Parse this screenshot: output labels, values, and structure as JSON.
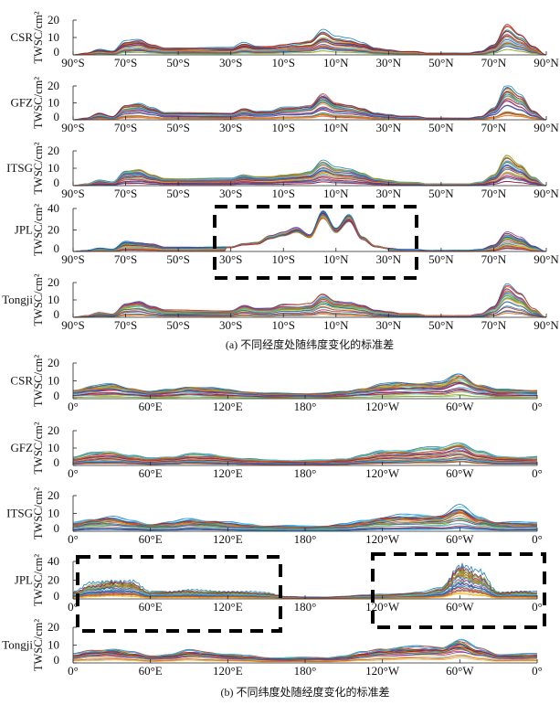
{
  "chart_data": [
    {
      "type": "line",
      "group": "a",
      "caption": "(a) 不同经度处随纬度变化的标准差",
      "xlabel": "",
      "ylabel": "TWSC/cm²",
      "x_ticks": [
        "90°S",
        "70°S",
        "50°S",
        "30°S",
        "10°S",
        "10°N",
        "30°N",
        "50°N",
        "70°N",
        "90°N"
      ],
      "xlim": [
        -90,
        90
      ],
      "x": [
        -90,
        -85,
        -80,
        -75,
        -70,
        -65,
        -60,
        -55,
        -50,
        -45,
        -40,
        -35,
        -30,
        -25,
        -20,
        -15,
        -10,
        -5,
        0,
        5,
        10,
        15,
        20,
        25,
        30,
        35,
        40,
        45,
        50,
        55,
        60,
        65,
        70,
        75,
        80,
        85,
        90
      ],
      "panels": [
        {
          "name": "CSR",
          "ylim": [
            0,
            20
          ],
          "y_ticks": [
            "0",
            "10",
            "20"
          ],
          "envelope_max": [
            0,
            1,
            3,
            2,
            8,
            9,
            6,
            4,
            4,
            4,
            4,
            4,
            4,
            7,
            5,
            5,
            6,
            7,
            8,
            14,
            10,
            9,
            7,
            4,
            3,
            2,
            2,
            1,
            1,
            1,
            1,
            2,
            6,
            18,
            12,
            5,
            0
          ]
        },
        {
          "name": "GFZ",
          "ylim": [
            0,
            20
          ],
          "y_ticks": [
            "0",
            "10",
            "20"
          ],
          "envelope_max": [
            0,
            1,
            4,
            2,
            9,
            10,
            7,
            4,
            4,
            4,
            4,
            4,
            4,
            7,
            5,
            5,
            7,
            7,
            8,
            15,
            10,
            9,
            7,
            4,
            3,
            2,
            2,
            1,
            1,
            1,
            1,
            2,
            7,
            20,
            14,
            5,
            0
          ]
        },
        {
          "name": "ITSG",
          "ylim": [
            0,
            20
          ],
          "y_ticks": [
            "0",
            "10",
            "20"
          ],
          "envelope_max": [
            0,
            1,
            3,
            2,
            8,
            9,
            6,
            4,
            4,
            4,
            4,
            4,
            4,
            6,
            5,
            5,
            6,
            7,
            8,
            14,
            10,
            9,
            7,
            4,
            3,
            2,
            2,
            1,
            1,
            1,
            1,
            2,
            6,
            17,
            12,
            5,
            0
          ]
        },
        {
          "name": "JPL",
          "ylim": [
            0,
            40
          ],
          "y_ticks": [
            "0",
            "20",
            "40"
          ],
          "envelope_max": [
            0,
            1,
            3,
            2,
            9,
            8,
            7,
            4,
            4,
            4,
            4,
            4,
            4,
            7,
            8,
            14,
            17,
            21,
            15,
            36,
            20,
            32,
            13,
            5,
            3,
            2,
            2,
            1,
            1,
            1,
            1,
            2,
            6,
            18,
            13,
            5,
            0
          ],
          "highlight": "box"
        },
        {
          "name": "Tongji",
          "ylim": [
            0,
            20
          ],
          "y_ticks": [
            "0",
            "10",
            "20"
          ],
          "envelope_max": [
            0,
            1,
            3,
            2,
            8,
            9,
            6,
            4,
            4,
            4,
            4,
            4,
            4,
            7,
            5,
            5,
            7,
            7,
            8,
            14,
            10,
            9,
            7,
            4,
            3,
            2,
            2,
            1,
            1,
            1,
            1,
            2,
            6,
            18,
            13,
            5,
            0
          ]
        }
      ]
    },
    {
      "type": "line",
      "group": "b",
      "caption": "(b) 不同纬度处随经度变化的标准差",
      "xlabel": "",
      "ylabel": "TWSC/cm²",
      "x_ticks": [
        "0°",
        "60°E",
        "120°E",
        "180°",
        "120°W",
        "60°W",
        "0°"
      ],
      "xlim": [
        0,
        360
      ],
      "x": [
        0,
        15,
        30,
        45,
        60,
        75,
        90,
        105,
        120,
        135,
        150,
        165,
        180,
        195,
        210,
        225,
        240,
        255,
        270,
        285,
        300,
        315,
        330,
        345,
        360
      ],
      "panels": [
        {
          "name": "CSR",
          "ylim": [
            0,
            20
          ],
          "y_ticks": [
            "0",
            "10",
            "20"
          ],
          "envelope_max": [
            5,
            7,
            8,
            6,
            4,
            5,
            7,
            6,
            5,
            4,
            3,
            3,
            3,
            3,
            4,
            6,
            8,
            9,
            9,
            9,
            14,
            8,
            5,
            5,
            5
          ]
        },
        {
          "name": "GFZ",
          "ylim": [
            0,
            20
          ],
          "y_ticks": [
            "0",
            "10",
            "20"
          ],
          "envelope_max": [
            5,
            7,
            8,
            6,
            4,
            5,
            7,
            6,
            5,
            4,
            3,
            3,
            3,
            3,
            4,
            6,
            8,
            9,
            10,
            10,
            14,
            8,
            5,
            5,
            5
          ]
        },
        {
          "name": "ITSG",
          "ylim": [
            0,
            20
          ],
          "y_ticks": [
            "0",
            "10",
            "20"
          ],
          "envelope_max": [
            5,
            7,
            8,
            6,
            4,
            5,
            7,
            6,
            5,
            4,
            3,
            3,
            3,
            3,
            4,
            6,
            8,
            9,
            9,
            9,
            14,
            8,
            5,
            5,
            5
          ]
        },
        {
          "name": "JPL",
          "ylim": [
            0,
            40
          ],
          "y_ticks": [
            "0",
            "20",
            "40"
          ],
          "envelope_max": [
            8,
            18,
            22,
            20,
            8,
            9,
            10,
            9,
            9,
            8,
            7,
            3,
            2,
            2,
            3,
            4,
            5,
            6,
            7,
            12,
            40,
            30,
            8,
            9,
            8
          ],
          "highlight": "two-boxes"
        },
        {
          "name": "Tongji",
          "ylim": [
            0,
            20
          ],
          "y_ticks": [
            "0",
            "10",
            "20"
          ],
          "envelope_max": [
            5,
            7,
            8,
            6,
            4,
            5,
            7,
            6,
            5,
            4,
            3,
            3,
            3,
            3,
            4,
            6,
            8,
            9,
            9,
            9,
            13,
            8,
            5,
            5,
            5
          ]
        }
      ]
    }
  ],
  "colors": [
    "#0072BD",
    "#D95319",
    "#EDB120",
    "#7E2F8E",
    "#77AC30",
    "#4DBEEE",
    "#A2142F"
  ]
}
